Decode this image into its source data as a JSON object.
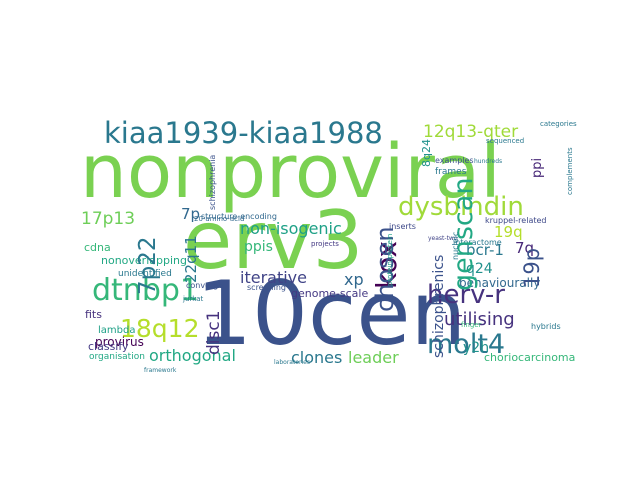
{
  "words": [
    {
      "text": "nonproviral",
      "color": "#7ad151"
    },
    {
      "text": "10cen",
      "color": "#3b528b"
    },
    {
      "text": "erv3",
      "color": "#7ad151"
    },
    {
      "text": "kiaa1939-kiaa1988",
      "color": "#2a788e"
    },
    {
      "text": "dysbindin",
      "color": "#a0da39"
    },
    {
      "text": "dtnbp1",
      "color": "#35b779"
    },
    {
      "text": "genscan",
      "color": "#22a884"
    },
    {
      "text": "chosen",
      "color": "#3b528b"
    },
    {
      "text": "herv-r",
      "color": "#46327e"
    },
    {
      "text": "molt4",
      "color": "#2a788e"
    },
    {
      "text": "kox",
      "color": "#440154"
    },
    {
      "text": "7p22",
      "color": "#2a788e"
    },
    {
      "text": "18q12",
      "color": "#b5de2b"
    },
    {
      "text": "12q13-qter",
      "color": "#a0da39"
    },
    {
      "text": "19p",
      "color": "#3b528b"
    },
    {
      "text": "non-isogenic",
      "color": "#1fa187"
    },
    {
      "text": "utilising",
      "color": "#46327e"
    },
    {
      "text": "iterative",
      "color": "#414487"
    },
    {
      "text": "orthogonal",
      "color": "#22a884"
    },
    {
      "text": "clones",
      "color": "#2a788e"
    },
    {
      "text": "leader",
      "color": "#6ece58"
    },
    {
      "text": "schizophrenics",
      "color": "#3b528b"
    },
    {
      "text": "bcr-1",
      "color": "#2a788e"
    },
    {
      "text": "disc1",
      "color": "#46327e"
    },
    {
      "text": "17p13",
      "color": "#6ece58"
    },
    {
      "text": "22q11",
      "color": "#2a788e"
    },
    {
      "text": "ppis",
      "color": "#35b779"
    },
    {
      "text": "7p",
      "color": "#31688e"
    },
    {
      "text": "xp",
      "color": "#31688e"
    },
    {
      "text": "19q",
      "color": "#b5de2b"
    },
    {
      "text": "q24",
      "color": "#21918c"
    },
    {
      "text": "7q",
      "color": "#482878"
    },
    {
      "text": "y2h",
      "color": "#21918c"
    },
    {
      "text": "behaviourally",
      "color": "#31688e"
    },
    {
      "text": "provirus",
      "color": "#440154"
    },
    {
      "text": "choriocarcinoma",
      "color": "#35b779"
    },
    {
      "text": "genome-scale",
      "color": "#443983"
    },
    {
      "text": "nonoverlapping",
      "color": "#22a884"
    },
    {
      "text": "cdna",
      "color": "#35b779"
    },
    {
      "text": "classify",
      "color": "#443983"
    },
    {
      "text": "fits",
      "color": "#46327e"
    },
    {
      "text": "lambda",
      "color": "#1fa187"
    },
    {
      "text": "organisation",
      "color": "#22a884"
    },
    {
      "text": "kruppel-related",
      "color": "#3e4989"
    },
    {
      "text": "interactome",
      "color": "#2a788e"
    },
    {
      "text": "ppi",
      "color": "#482878"
    },
    {
      "text": "8q24",
      "color": "#21918c"
    },
    {
      "text": "frames",
      "color": "#2a788e"
    },
    {
      "text": "examples",
      "color": "#3b528b"
    },
    {
      "text": "inserts",
      "color": "#3e4989"
    },
    {
      "text": "structure-encoding",
      "color": "#31688e"
    },
    {
      "text": "20-amino-acid",
      "color": "#31688e"
    },
    {
      "text": "nucleic",
      "color": "#2a788e"
    },
    {
      "text": "unidentified",
      "color": "#2a788e"
    },
    {
      "text": "screening",
      "color": "#3b528b"
    },
    {
      "text": "sequenced",
      "color": "#2a788e"
    },
    {
      "text": "complements",
      "color": "#2a788e"
    },
    {
      "text": "hybrids",
      "color": "#2a788e"
    },
    {
      "text": "yeast-two",
      "color": "#414487"
    },
    {
      "text": "projects",
      "color": "#443983"
    },
    {
      "text": "laboratories",
      "color": "#2a788e"
    },
    {
      "text": "converge",
      "color": "#3b528b"
    },
    {
      "text": "finger",
      "color": "#35b779"
    },
    {
      "text": "protein-protein",
      "color": "#1fa187"
    },
    {
      "text": "schizophrenia",
      "color": "#3b528b"
    },
    {
      "text": "categories",
      "color": "#2a788e"
    },
    {
      "text": "hundreds",
      "color": "#2a788e"
    },
    {
      "text": "jurkat",
      "color": "#2a788e"
    },
    {
      "text": "framework",
      "color": "#2a788e"
    }
  ]
}
